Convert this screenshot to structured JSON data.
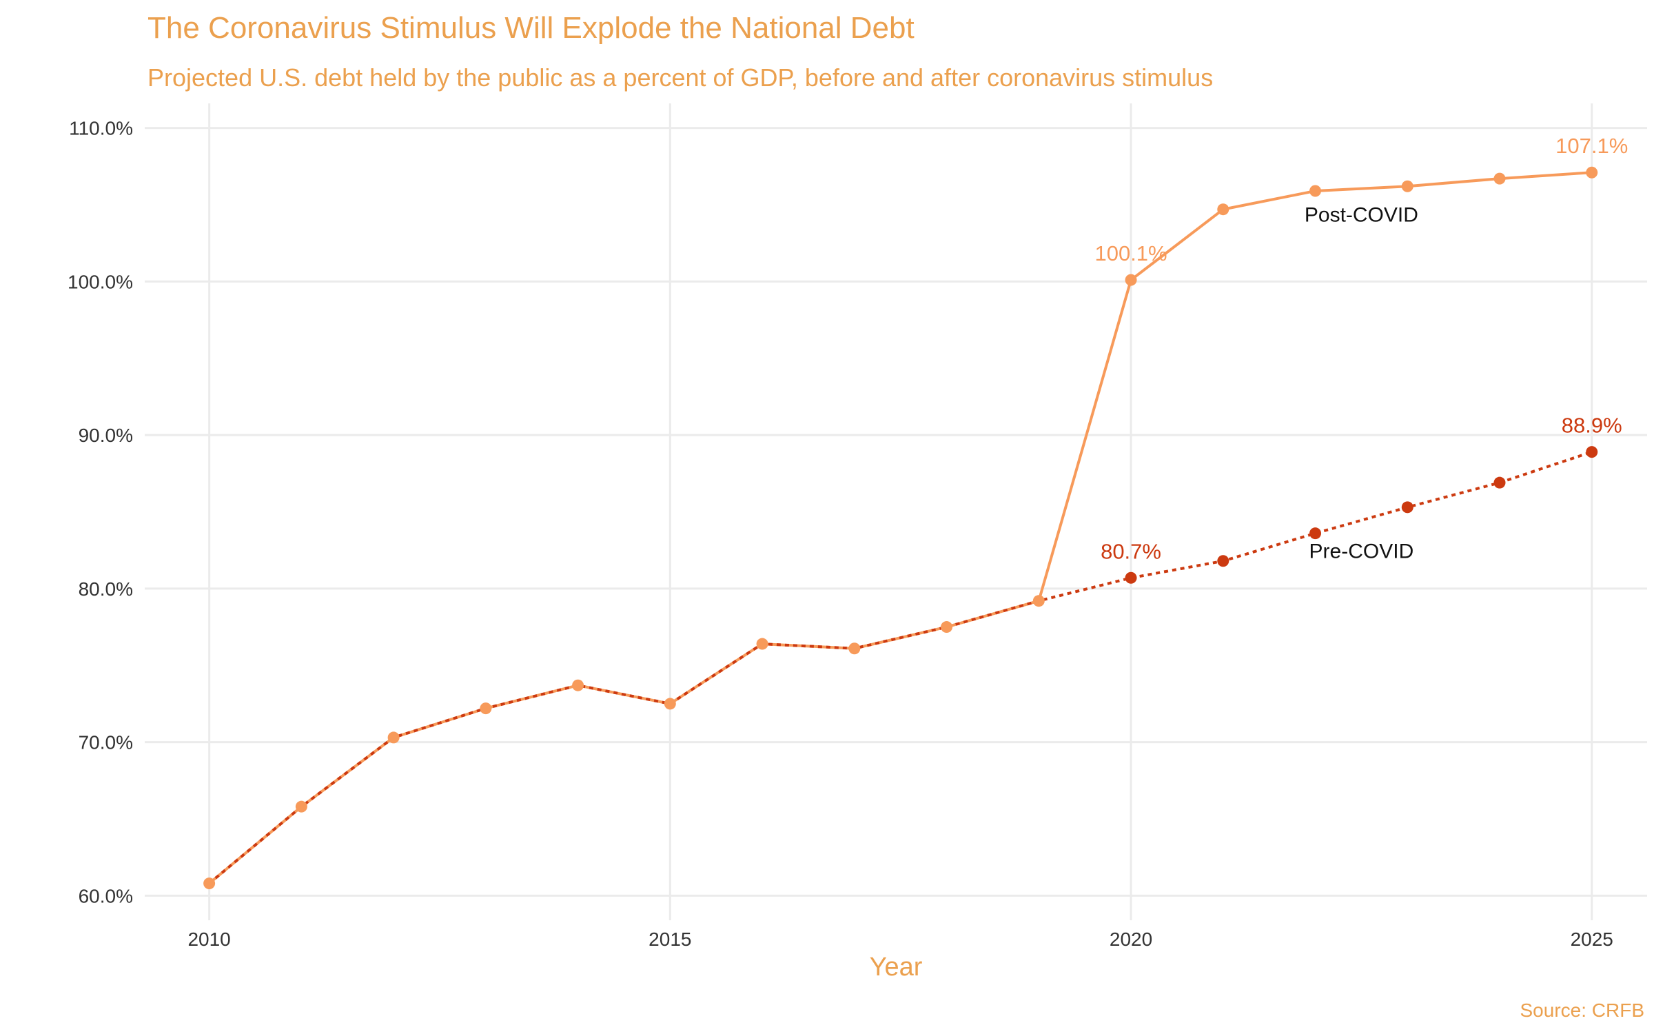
{
  "chart_data": {
    "type": "line",
    "title": "The Coronavirus Stimulus Will Explode the National Debt",
    "subtitle": "Projected U.S. debt held by the public as a percent of GDP, before and after coronavirus stimulus",
    "xlabel": "Year",
    "ylabel": "",
    "caption": "Source: CRFB",
    "xlim": [
      2009.3,
      2025.6
    ],
    "ylim": [
      58.4,
      111.6
    ],
    "x_ticks": [
      2010,
      2015,
      2020,
      2025
    ],
    "x_tick_labels": [
      "2010",
      "2015",
      "2020",
      "2025"
    ],
    "y_ticks": [
      60,
      70,
      80,
      90,
      100,
      110
    ],
    "y_tick_labels": [
      "60.0%",
      "70.0%",
      "80.0%",
      "90.0%",
      "100.0%",
      "110.0%"
    ],
    "grid": true,
    "legend": "none",
    "series": [
      {
        "name": "Post-COVID",
        "color": "#F79A5A",
        "line_style": "solid",
        "x": [
          2010,
          2011,
          2012,
          2013,
          2014,
          2015,
          2016,
          2017,
          2018,
          2019,
          2020,
          2021,
          2022,
          2023,
          2024,
          2025
        ],
        "values": [
          60.8,
          65.8,
          70.3,
          72.2,
          73.7,
          72.5,
          76.4,
          76.1,
          77.5,
          79.2,
          100.1,
          104.7,
          105.9,
          106.2,
          106.7,
          107.1
        ]
      },
      {
        "name": "Pre-COVID",
        "color": "#CC3A10",
        "line_style": "dotted",
        "x": [
          2010,
          2011,
          2012,
          2013,
          2014,
          2015,
          2016,
          2017,
          2018,
          2019,
          2020,
          2021,
          2022,
          2023,
          2024,
          2025
        ],
        "values": [
          60.8,
          65.8,
          70.3,
          72.2,
          73.7,
          72.5,
          76.4,
          76.1,
          77.5,
          79.2,
          80.7,
          81.8,
          83.6,
          85.3,
          86.9,
          88.9
        ]
      }
    ],
    "data_labels": [
      {
        "series": "Post-COVID",
        "x": 2020,
        "text": "100.1%"
      },
      {
        "series": "Post-COVID",
        "x": 2025,
        "text": "107.1%"
      },
      {
        "series": "Pre-COVID",
        "x": 2020,
        "text": "80.7%"
      },
      {
        "series": "Pre-COVID",
        "x": 2025,
        "text": "88.9%"
      }
    ],
    "series_labels": [
      {
        "text": "Post-COVID",
        "x": 2022.5,
        "y": 103.9
      },
      {
        "text": "Pre-COVID",
        "x": 2022.5,
        "y": 82.0
      }
    ]
  }
}
